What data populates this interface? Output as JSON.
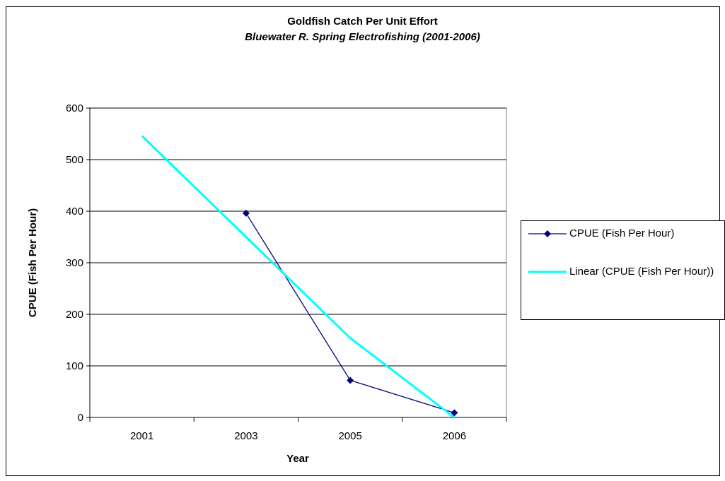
{
  "chart_data": {
    "type": "line",
    "title": "Goldfish Catch Per Unit Effort",
    "subtitle": "Bluewater R. Spring Electrofishing (2001-2006)",
    "xlabel": "Year",
    "ylabel": "CPUE (Fish Per Hour)",
    "categories": [
      "2001",
      "2003",
      "2005",
      "2006"
    ],
    "ylim": [
      0,
      600
    ],
    "yticks": [
      0,
      100,
      200,
      300,
      400,
      500,
      600
    ],
    "grid": true,
    "legend_position": "right",
    "series": [
      {
        "name": "CPUE (Fish Per Hour)",
        "values": [
          null,
          396,
          72,
          9
        ],
        "color": "#000080",
        "marker": "diamond"
      },
      {
        "name": "Linear (CPUE (Fish Per Hour))",
        "type": "trendline",
        "values": [
          546,
          350,
          154,
          0
        ],
        "color": "#00FFFF"
      }
    ]
  }
}
